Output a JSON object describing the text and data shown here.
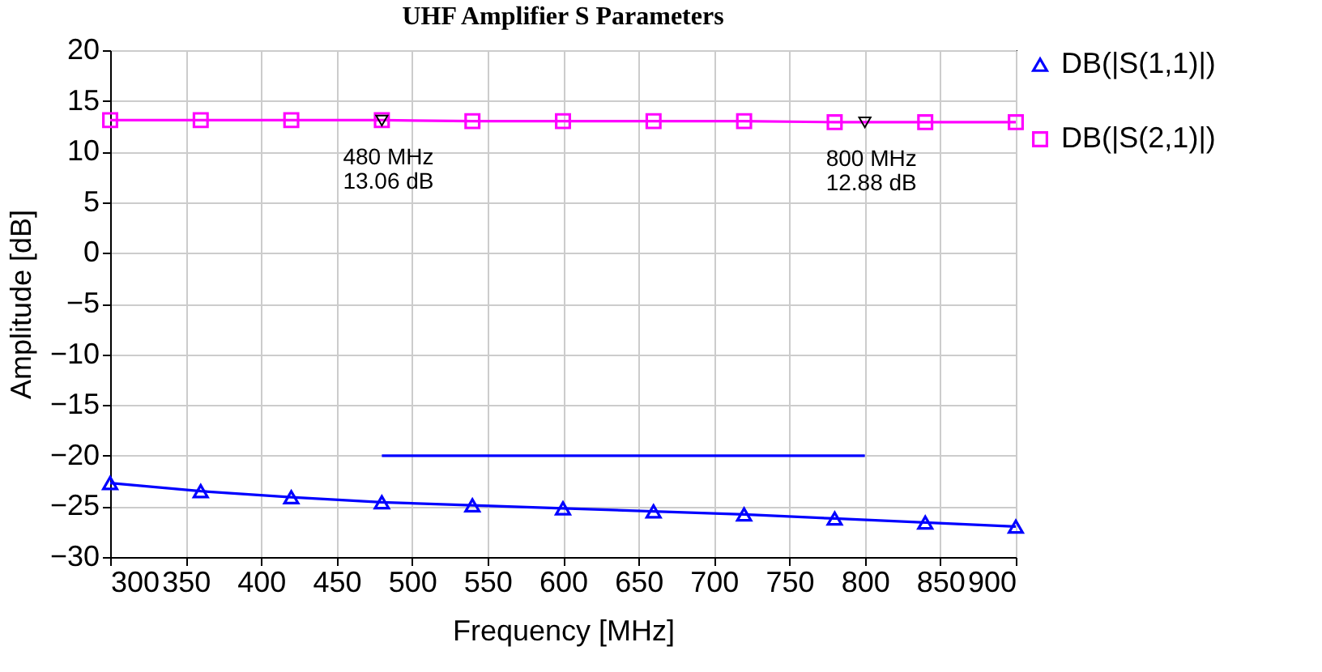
{
  "chart_data": {
    "type": "line",
    "title": "UHF Amplifier S Parameters",
    "xlabel": "Frequency [MHz]",
    "ylabel": "Amplitude [dB]",
    "x": [
      300,
      360,
      420,
      480,
      540,
      600,
      660,
      720,
      780,
      840,
      900
    ],
    "series": [
      {
        "name": "DB(|S(1,1)|)",
        "color": "#0000ff",
        "marker": "triangle",
        "values": [
          -22.7,
          -23.5,
          -24.1,
          -24.6,
          -24.9,
          -25.2,
          -25.5,
          -25.8,
          -26.2,
          -26.6,
          -27.0
        ]
      },
      {
        "name": "DB(|S(2,1)|)",
        "color": "#ff00ff",
        "marker": "square",
        "values": [
          13.1,
          13.1,
          13.1,
          13.1,
          13.0,
          13.0,
          13.0,
          13.0,
          12.9,
          12.9,
          12.9
        ]
      },
      {
        "color": "#0000ff",
        "marker": "none",
        "x": [
          480,
          800
        ],
        "values": [
          -20,
          -20
        ]
      }
    ],
    "annotations": [
      {
        "text": "480 MHz\n13.06 dB",
        "x": 480,
        "y": 13.06
      },
      {
        "text": "800 MHz\n12.88 dB",
        "x": 800,
        "y": 12.88
      }
    ],
    "xlim": [
      300,
      900
    ],
    "xticks": [
      300,
      350,
      400,
      450,
      500,
      550,
      600,
      650,
      700,
      750,
      800,
      850,
      900
    ],
    "ylim": [
      -30,
      20
    ],
    "yticks": [
      -30,
      -25,
      -20,
      -15,
      -10,
      -5,
      0,
      5,
      10,
      15,
      20
    ],
    "grid": true,
    "legend": "top right",
    "line_style": "solid"
  }
}
